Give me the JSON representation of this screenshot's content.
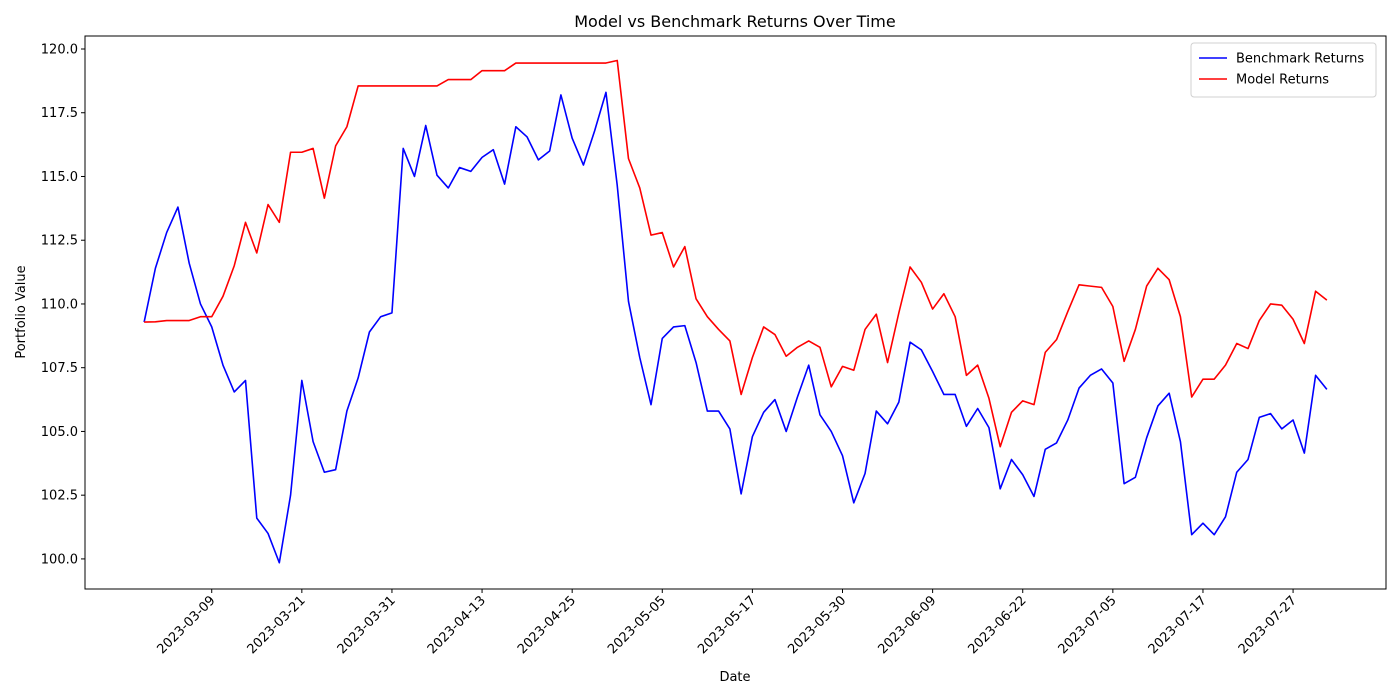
{
  "chart_data": {
    "type": "line",
    "title": "Model vs Benchmark Returns Over Time",
    "xlabel": "Date",
    "ylabel": "Portfolio Value",
    "categories": [
      null,
      null,
      null,
      null,
      null,
      null,
      "2023-03-09",
      null,
      null,
      null,
      null,
      null,
      null,
      null,
      "2023-03-21",
      null,
      null,
      null,
      null,
      null,
      null,
      null,
      "2023-03-31",
      null,
      null,
      null,
      null,
      null,
      null,
      null,
      "2023-04-13",
      null,
      null,
      null,
      null,
      null,
      null,
      null,
      "2023-04-25",
      null,
      null,
      null,
      null,
      null,
      null,
      null,
      "2023-05-05",
      null,
      null,
      null,
      null,
      null,
      null,
      null,
      "2023-05-17",
      null,
      null,
      null,
      null,
      null,
      null,
      null,
      "2023-05-30",
      null,
      null,
      null,
      null,
      null,
      null,
      null,
      "2023-06-09",
      null,
      null,
      null,
      null,
      null,
      null,
      null,
      "2023-06-22",
      null,
      null,
      null,
      null,
      null,
      null,
      null,
      "2023-07-05",
      null,
      null,
      null,
      null,
      null,
      null,
      null,
      "2023-07-17",
      null,
      null,
      null,
      null,
      null,
      null,
      null,
      "2023-07-27",
      null,
      null,
      null
    ],
    "xlim": [
      -5.25,
      110.25
    ],
    "ylim": [
      98.82,
      120.51
    ],
    "yticks": [
      {
        "value": 100,
        "label": "100.0"
      },
      {
        "value": 102.5,
        "label": "102.5"
      },
      {
        "value": 105,
        "label": "105.0"
      },
      {
        "value": 107.5,
        "label": "107.5"
      },
      {
        "value": 110,
        "label": "110.0"
      },
      {
        "value": 112.5,
        "label": "112.5"
      },
      {
        "value": 115,
        "label": "115.0"
      },
      {
        "value": 117.5,
        "label": "117.5"
      },
      {
        "value": 120,
        "label": "120.0"
      }
    ],
    "grid": false,
    "legend": "upper right",
    "series": [
      {
        "name": "Benchmark Returns",
        "color": "#0000ff",
        "values": [
          109.29,
          111.4,
          112.8,
          113.8,
          111.6,
          110.0,
          109.1,
          107.6,
          106.55,
          107.0,
          101.6,
          101.0,
          99.85,
          102.5,
          107.0,
          104.6,
          103.4,
          103.5,
          105.8,
          107.1,
          108.9,
          109.5,
          109.65,
          116.1,
          115.0,
          117.0,
          115.05,
          114.55,
          115.35,
          115.2,
          115.75,
          116.05,
          114.7,
          116.95,
          116.55,
          115.65,
          116.0,
          118.2,
          116.5,
          115.45,
          116.8,
          118.3,
          114.65,
          110.1,
          107.9,
          106.05,
          108.65,
          109.1,
          109.15,
          107.7,
          105.8,
          105.8,
          105.1,
          102.55,
          104.8,
          105.75,
          106.25,
          105.0,
          106.35,
          107.6,
          105.65,
          105.0,
          104.05,
          102.2,
          103.35,
          105.8,
          105.3,
          106.15,
          108.5,
          108.2,
          107.35,
          106.45,
          106.45,
          105.2,
          105.9,
          105.15,
          102.75,
          103.9,
          103.3,
          102.45,
          104.3,
          104.55,
          105.45,
          106.7,
          107.2,
          107.45,
          106.9,
          102.95,
          103.2,
          104.75,
          106.0,
          106.5,
          104.6,
          100.95,
          101.4,
          100.95,
          101.65,
          103.4,
          103.9,
          105.55,
          105.7,
          105.1,
          105.45,
          104.15,
          107.2,
          106.65
        ]
      },
      {
        "name": "Model Returns",
        "color": "#ff0000",
        "values": [
          109.29,
          109.3,
          109.35,
          109.35,
          109.35,
          109.5,
          109.5,
          110.3,
          111.5,
          113.2,
          112.0,
          113.9,
          113.2,
          115.95,
          115.95,
          116.1,
          114.15,
          116.2,
          116.95,
          118.55,
          118.55,
          118.55,
          118.55,
          118.55,
          118.55,
          118.55,
          118.55,
          118.8,
          118.8,
          118.8,
          119.15,
          119.15,
          119.15,
          119.45,
          119.45,
          119.45,
          119.45,
          119.45,
          119.45,
          119.45,
          119.45,
          119.45,
          119.55,
          115.7,
          114.55,
          112.7,
          112.8,
          111.45,
          112.25,
          110.2,
          109.5,
          109.0,
          108.55,
          106.45,
          107.9,
          109.1,
          108.8,
          107.95,
          108.3,
          108.55,
          108.3,
          106.75,
          107.55,
          107.4,
          109.0,
          109.6,
          107.7,
          109.65,
          111.45,
          110.85,
          109.8,
          110.4,
          109.5,
          107.2,
          107.6,
          106.3,
          104.4,
          105.75,
          106.2,
          106.05,
          108.1,
          108.6,
          109.7,
          110.75,
          110.7,
          110.65,
          109.9,
          107.75,
          109.0,
          110.7,
          111.4,
          110.95,
          109.5,
          106.35,
          107.05,
          107.05,
          107.6,
          108.45,
          108.25,
          109.35,
          110.0,
          109.95,
          109.4,
          108.45,
          110.5,
          110.15
        ]
      }
    ]
  }
}
